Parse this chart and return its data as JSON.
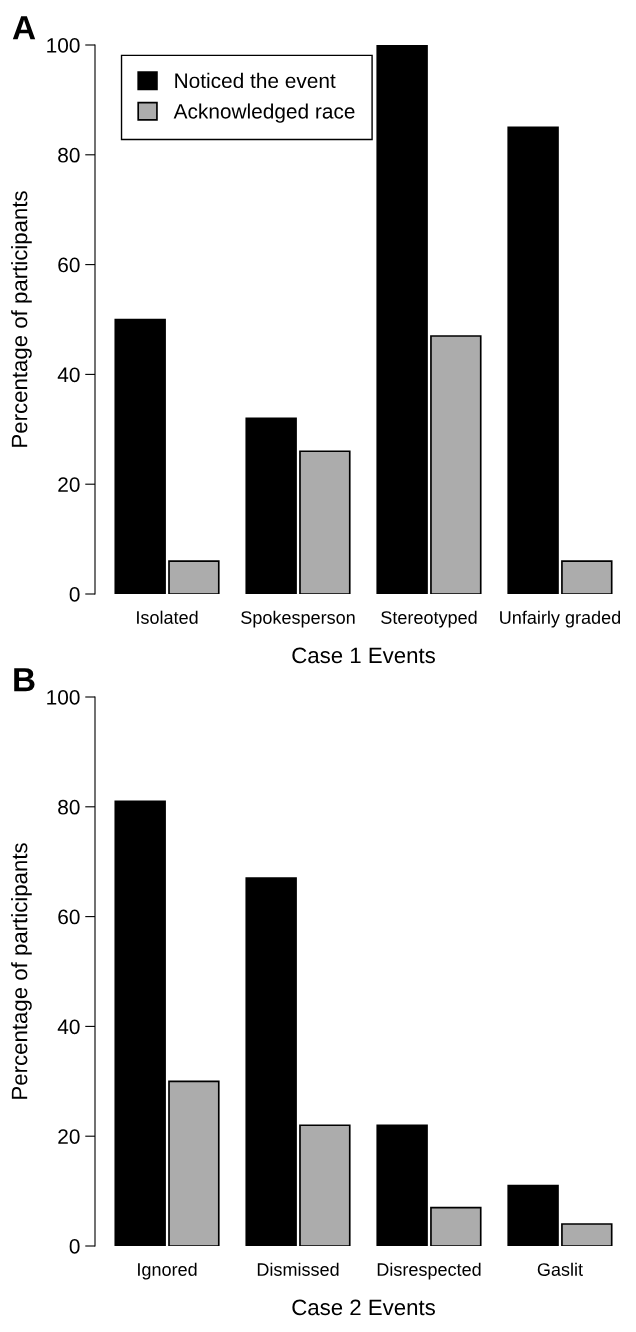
{
  "chart_data": [
    {
      "type": "bar",
      "categories": [
        "Isolated",
        "Spokesperson",
        "Stereotyped",
        "Unfairly graded"
      ],
      "xlabel": "Case 1 Events",
      "ylabel": "Percentage of participants",
      "ylim": [
        0,
        100
      ],
      "yticks": [
        0,
        20,
        40,
        60,
        80,
        100
      ],
      "grid": false,
      "legend": "top left",
      "annotations": [
        "A"
      ],
      "series": [
        {
          "name": "Noticed the event",
          "color": "#000000",
          "values": [
            50,
            32,
            100,
            85
          ]
        },
        {
          "name": "Acknowledged race",
          "color": "#acacac",
          "values": [
            6,
            26,
            47,
            6
          ]
        }
      ]
    },
    {
      "type": "bar",
      "categories": [
        "Ignored",
        "Dismissed",
        "Disrespected",
        "Gaslit"
      ],
      "xlabel": "Case 2 Events",
      "ylabel": "Percentage of participants",
      "ylim": [
        0,
        100
      ],
      "yticks": [
        0,
        20,
        40,
        60,
        80,
        100
      ],
      "grid": false,
      "legend": false,
      "annotations": [
        "B"
      ],
      "series": [
        {
          "color": "#000000",
          "values": [
            81,
            67,
            22,
            11
          ]
        },
        {
          "color": "#acacac",
          "values": [
            30,
            22,
            7,
            4
          ]
        }
      ]
    }
  ]
}
